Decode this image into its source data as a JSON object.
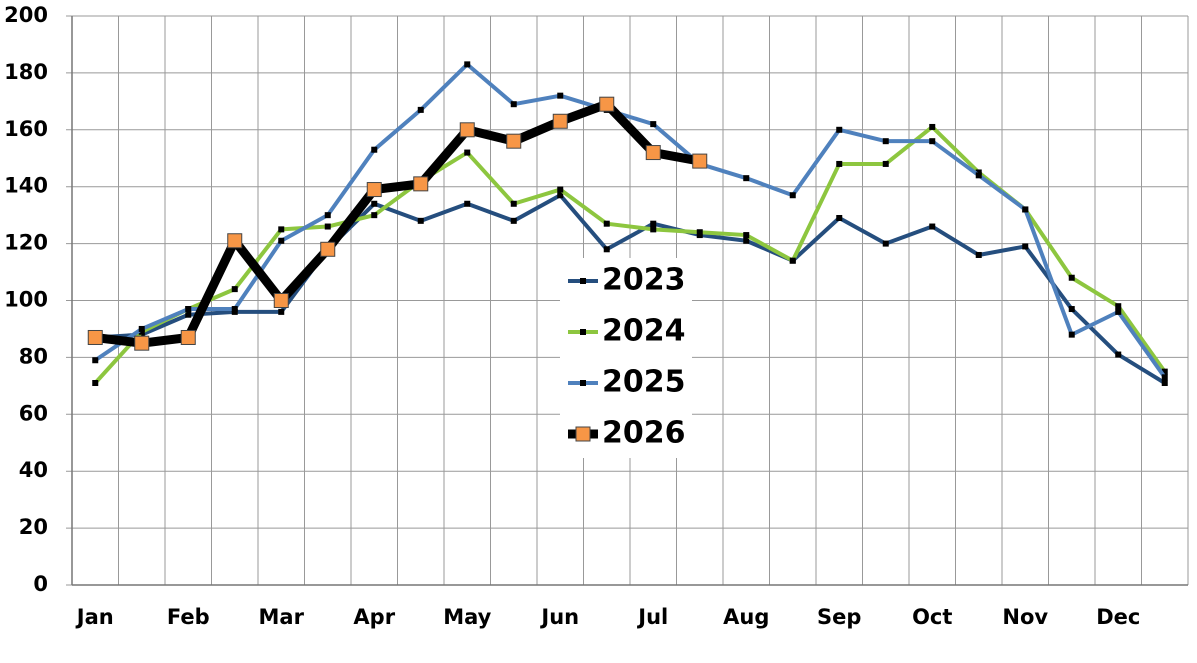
{
  "chart_data": {
    "type": "line",
    "categories": [
      "Jan",
      null,
      "Feb",
      null,
      "Mar",
      null,
      "Apr",
      null,
      "May",
      null,
      "Jun",
      null,
      "Jul",
      null,
      "Aug",
      null,
      "Sep",
      null,
      "Oct",
      null,
      "Nov",
      null,
      "Dec",
      null
    ],
    "series": [
      {
        "name": "2023",
        "color": "#254e7e",
        "values": [
          87,
          88,
          95,
          96,
          96,
          118,
          134,
          128,
          134,
          128,
          137,
          118,
          127,
          123,
          121,
          114,
          129,
          120,
          126,
          116,
          119,
          97,
          81,
          71
        ]
      },
      {
        "name": "2024",
        "color": "#8dc63f",
        "values": [
          71,
          89,
          97,
          104,
          125,
          126,
          130,
          142,
          152,
          134,
          139,
          127,
          125,
          124,
          123,
          114,
          148,
          148,
          161,
          145,
          132,
          108,
          98,
          75
        ]
      },
      {
        "name": "2025",
        "color": "#4f81bd",
        "values": [
          79,
          90,
          97,
          97,
          121,
          130,
          153,
          167,
          183,
          169,
          172,
          167,
          162,
          148,
          143,
          137,
          160,
          156,
          156,
          144,
          132,
          88,
          96,
          73
        ]
      },
      {
        "name": "2026",
        "color": "#000000",
        "marker_color": "#f79646",
        "values": [
          87,
          85,
          87,
          121,
          100,
          118,
          139,
          141,
          160,
          156,
          163,
          169,
          152,
          149,
          null,
          null,
          null,
          null,
          null,
          null,
          null,
          null,
          null,
          null
        ]
      }
    ],
    "ylim": [
      0,
      200
    ],
    "yticks": [
      0,
      20,
      40,
      60,
      80,
      100,
      120,
      140,
      160,
      180,
      200
    ],
    "grid": true
  }
}
